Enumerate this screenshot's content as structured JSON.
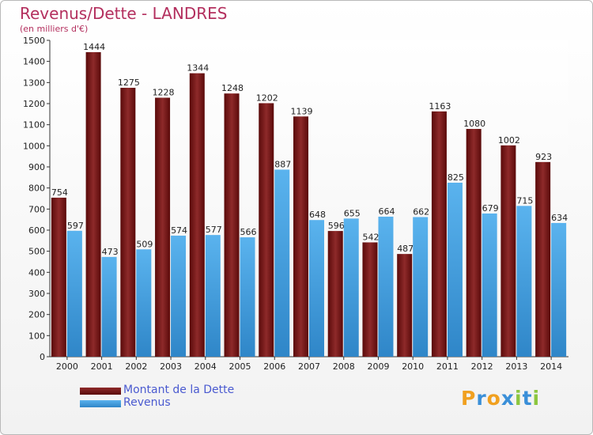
{
  "chart_data": {
    "type": "bar",
    "title": "Revenus/Dette - LANDRES",
    "subtitle": "(en milliers d'€)",
    "categories": [
      "2000",
      "2001",
      "2002",
      "2003",
      "2004",
      "2005",
      "2006",
      "2007",
      "2008",
      "2009",
      "2010",
      "2011",
      "2012",
      "2013",
      "2014"
    ],
    "series": [
      {
        "name": "Montant de la Dette",
        "color": "#7a1b1b",
        "values": [
          754,
          1444,
          1275,
          1228,
          1344,
          1248,
          1202,
          1139,
          596,
          542,
          487,
          1163,
          1080,
          1002,
          923
        ]
      },
      {
        "name": "Revenus",
        "color": "#4aa3e0",
        "values": [
          597,
          473,
          509,
          574,
          577,
          566,
          887,
          648,
          655,
          664,
          662,
          825,
          679,
          715,
          634
        ]
      }
    ],
    "ylim": [
      0,
      1500
    ],
    "yticks": [
      0,
      100,
      200,
      300,
      400,
      500,
      600,
      700,
      800,
      900,
      1000,
      1100,
      1200,
      1300,
      1400,
      1500
    ],
    "grid": false,
    "legend": "bottom-left"
  },
  "logo": {
    "letters": [
      "P",
      "r",
      "o",
      "x",
      "i",
      "t",
      "i"
    ],
    "colors": [
      "#f0a020",
      "#3a8fd8",
      "#f0a020",
      "#3a8fd8",
      "#8cc63f",
      "#3a8fd8",
      "#8cc63f"
    ]
  }
}
